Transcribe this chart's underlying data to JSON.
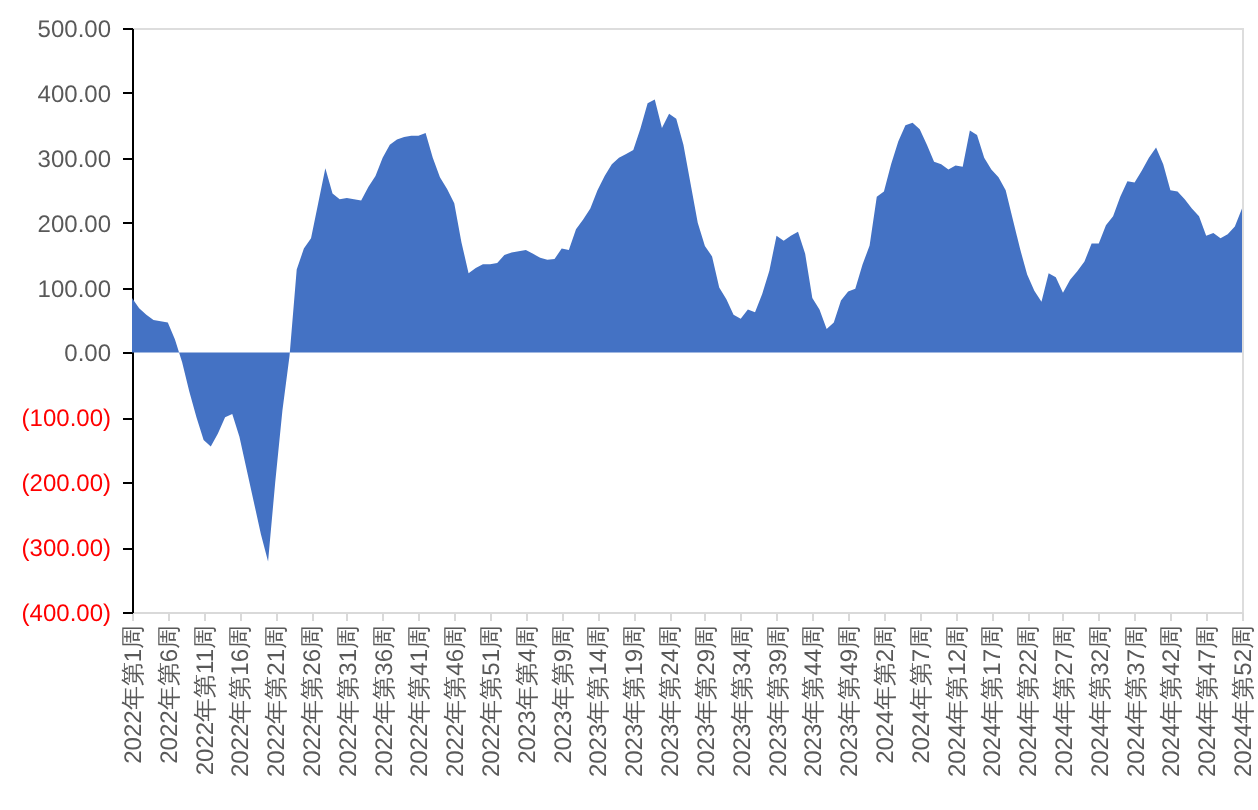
{
  "chart_data": {
    "type": "area",
    "categories": [
      "2022年第1周",
      null,
      null,
      null,
      null,
      "2022年第6周",
      null,
      null,
      null,
      null,
      "2022年第11周",
      null,
      null,
      null,
      null,
      "2022年第16周",
      null,
      null,
      null,
      null,
      "2022年第21周",
      null,
      null,
      null,
      null,
      "2022年第26周",
      null,
      null,
      null,
      null,
      "2022年第31周",
      null,
      null,
      null,
      null,
      "2022年第36周",
      null,
      null,
      null,
      null,
      "2022年第41周",
      null,
      null,
      null,
      null,
      "2022年第46周",
      null,
      null,
      null,
      null,
      "2022年第51周",
      null,
      null,
      null,
      null,
      "2023年第4周",
      null,
      null,
      null,
      null,
      "2023年第9周",
      null,
      null,
      null,
      null,
      "2023年第14周",
      null,
      null,
      null,
      null,
      "2023年第19周",
      null,
      null,
      null,
      null,
      "2023年第24周",
      null,
      null,
      null,
      null,
      "2023年第29周",
      null,
      null,
      null,
      null,
      "2023年第34周",
      null,
      null,
      null,
      null,
      "2023年第39周",
      null,
      null,
      null,
      null,
      "2023年第44周",
      null,
      null,
      null,
      null,
      "2023年第49周",
      null,
      null,
      null,
      null,
      "2024年第2周",
      null,
      null,
      null,
      null,
      "2024年第7周",
      null,
      null,
      null,
      null,
      "2024年第12周",
      null,
      null,
      null,
      null,
      "2024年第17周",
      null,
      null,
      null,
      null,
      "2024年第22周",
      null,
      null,
      null,
      null,
      "2024年第27周",
      null,
      null,
      null,
      null,
      "2024年第32周",
      null,
      null,
      null,
      null,
      "2024年第37周",
      null,
      null,
      null,
      null,
      "2024年第42周",
      null,
      null,
      null,
      null,
      "2024年第47周",
      null,
      null,
      null,
      null,
      "2024年第52周"
    ],
    "series": [
      {
        "color": "#4472c4",
        "values": [
          84,
          68,
          58,
          50,
          48,
          46,
          20,
          -15,
          -60,
          -100,
          -135,
          -145,
          -125,
          -100,
          -95,
          -130,
          -180,
          -230,
          -280,
          -322,
          -200,
          -90,
          -5,
          128,
          160,
          176,
          230,
          284,
          245,
          236,
          238,
          236,
          234,
          255,
          272,
          300,
          320,
          328,
          332,
          334,
          334,
          338,
          300,
          270,
          252,
          230,
          170,
          122,
          130,
          136,
          136,
          138,
          150,
          154,
          156,
          158,
          152,
          146,
          143,
          144,
          160,
          158,
          190,
          205,
          222,
          250,
          272,
          290,
          300,
          306,
          312,
          345,
          384,
          390,
          346,
          368,
          360,
          320,
          260,
          200,
          164,
          148,
          100,
          82,
          58,
          52,
          66,
          62,
          90,
          126,
          180,
          172,
          180,
          186,
          152,
          84,
          66,
          36,
          46,
          80,
          94,
          98,
          135,
          165,
          240,
          248,
          290,
          325,
          350,
          354,
          344,
          320,
          294,
          290,
          282,
          288,
          286,
          342,
          335,
          300,
          282,
          270,
          250,
          205,
          160,
          120,
          95,
          78,
          122,
          116,
          92,
          112,
          125,
          140,
          168,
          168,
          196,
          210,
          240,
          264,
          262,
          280,
          300,
          316,
          290,
          250,
          248,
          236,
          222,
          210,
          180,
          184,
          176,
          182,
          194,
          222
        ]
      }
    ],
    "ylim": [
      -400,
      500
    ],
    "yticks": [
      {
        "value": -400,
        "label": "(400.00)"
      },
      {
        "value": -300,
        "label": "(300.00)"
      },
      {
        "value": -200,
        "label": "(200.00)"
      },
      {
        "value": -100,
        "label": "(100.00)"
      },
      {
        "value": 0,
        "label": "0.00"
      },
      {
        "value": 100,
        "label": "100.00"
      },
      {
        "value": 200,
        "label": "200.00"
      },
      {
        "value": 300,
        "label": "300.00"
      },
      {
        "value": 400,
        "label": "400.00"
      },
      {
        "value": 500,
        "label": "500.00"
      }
    ],
    "grid": false
  }
}
